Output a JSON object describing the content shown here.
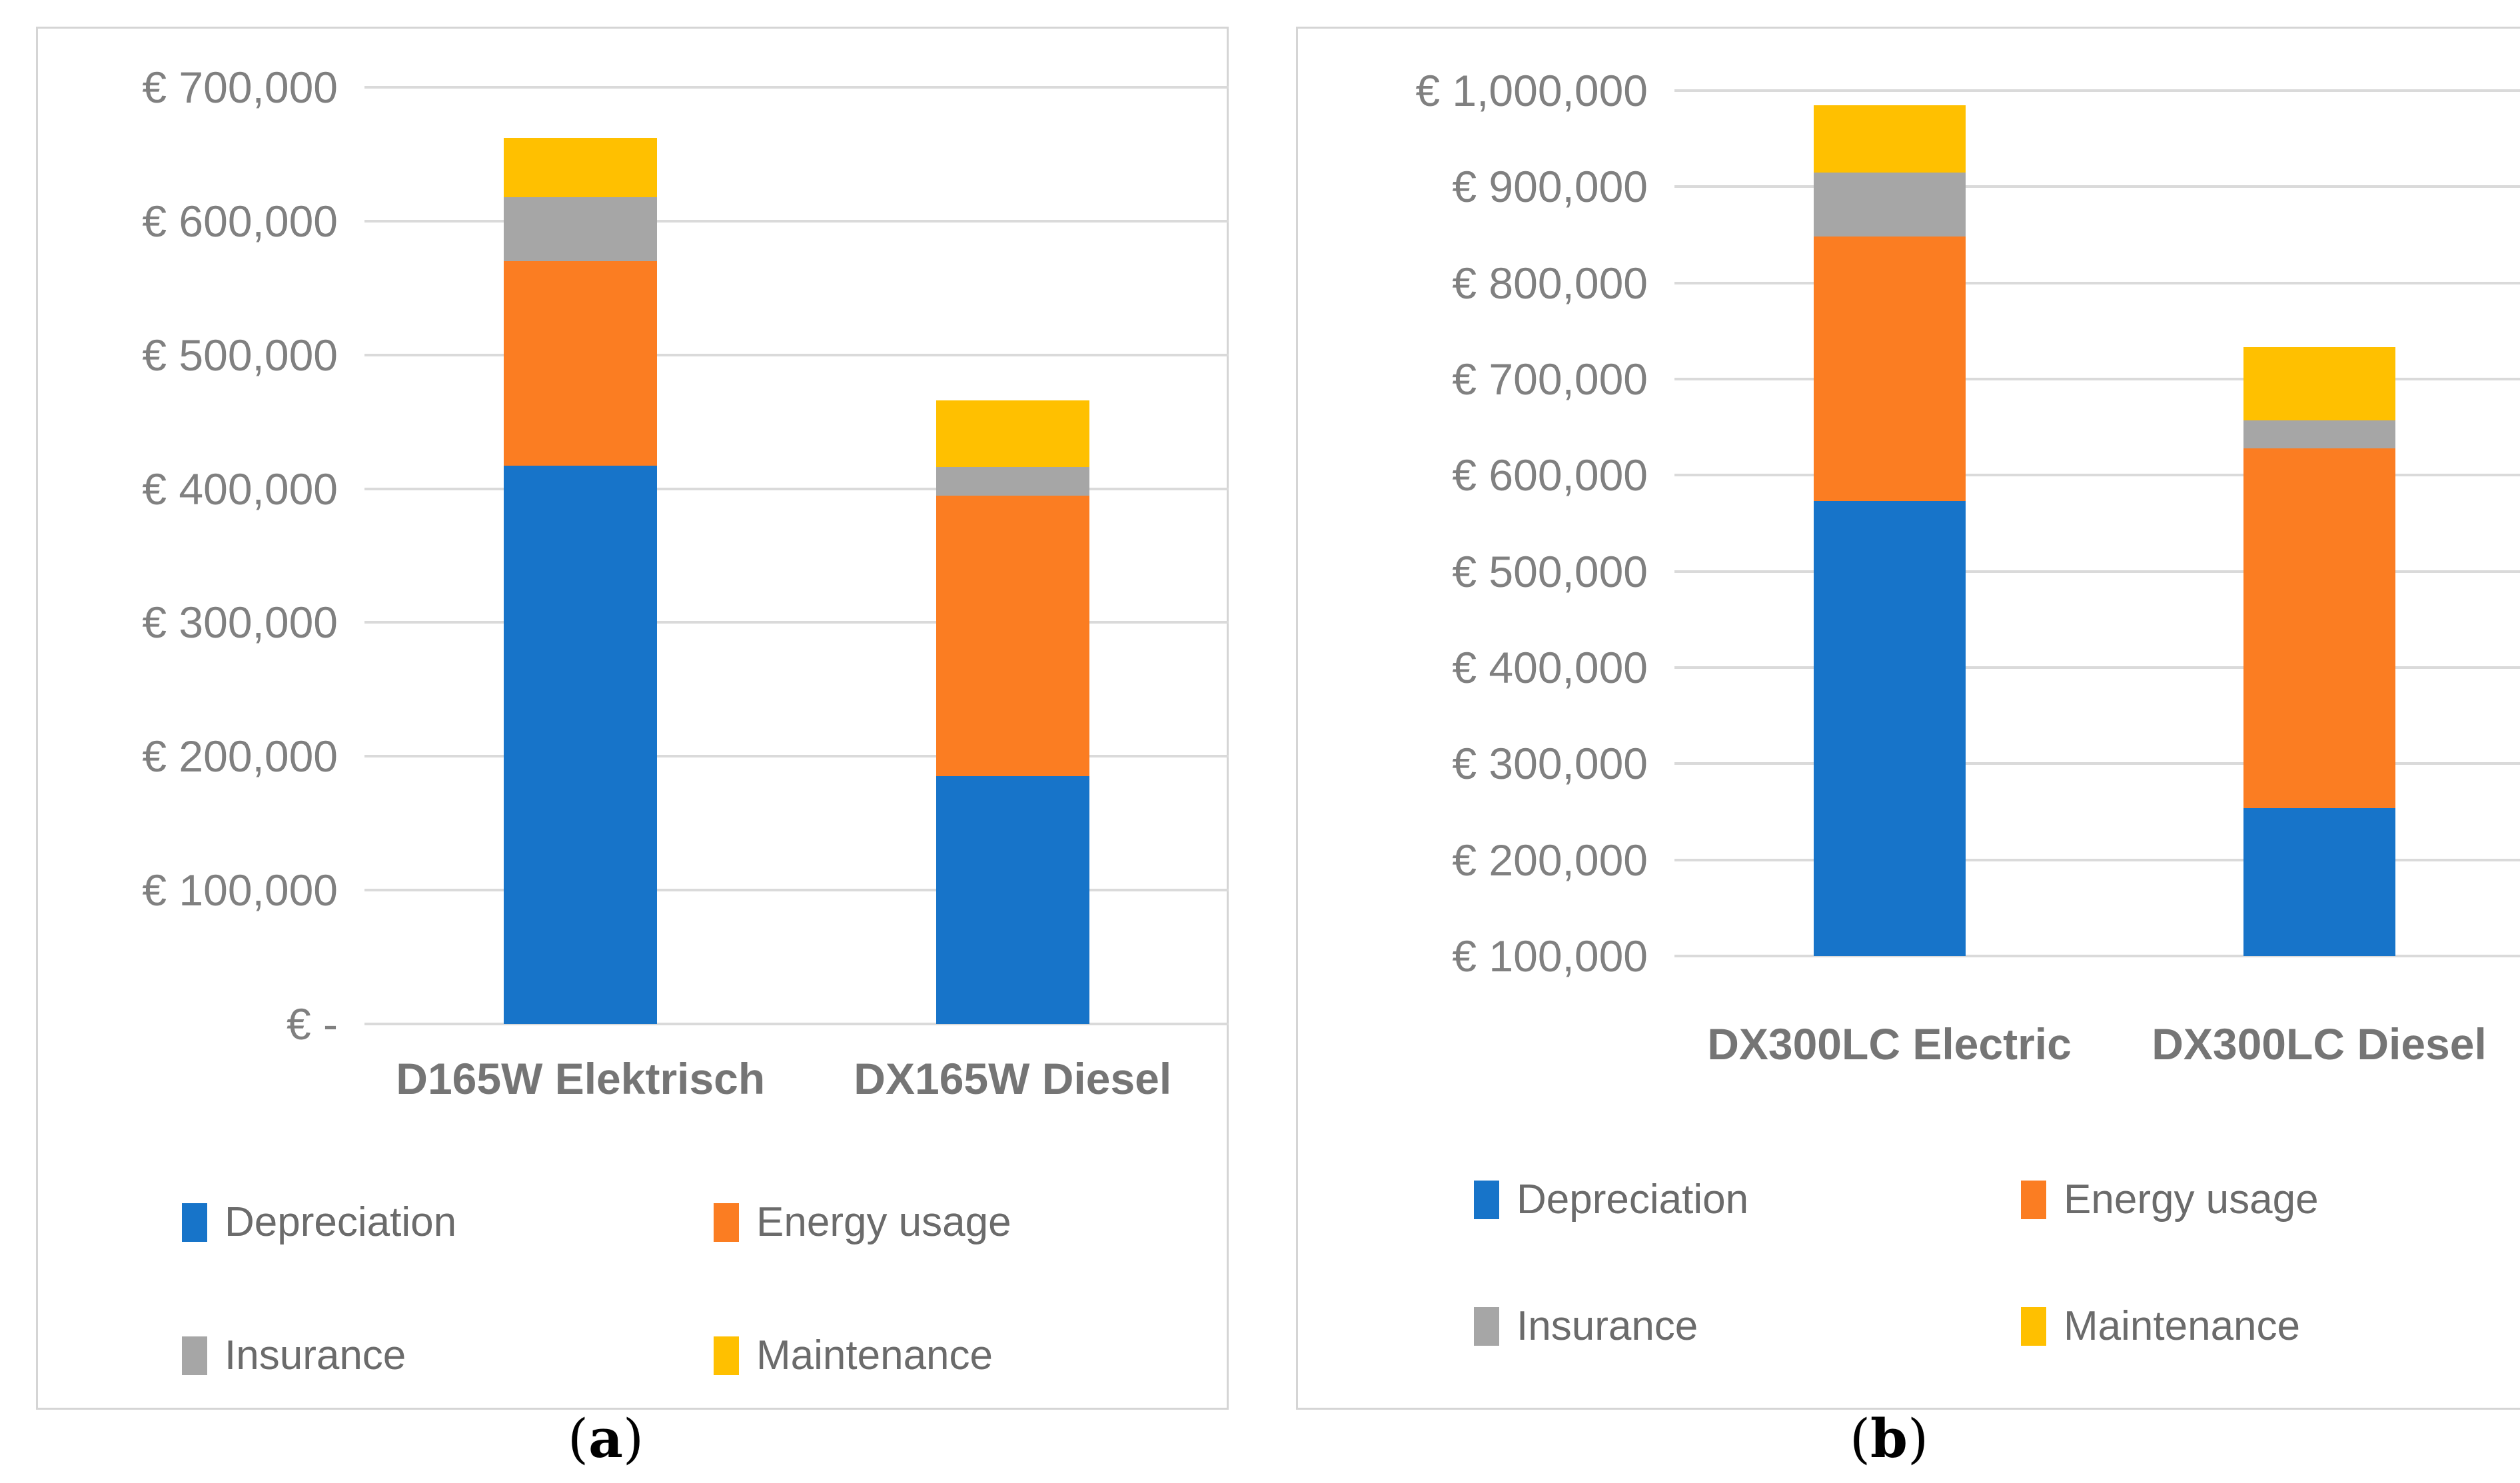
{
  "colors": {
    "depreciation": "#1774C9",
    "energy_usage": "#FB7D22",
    "insurance": "#A6A6A6",
    "maintenance": "#FFC000",
    "gridline": "#DADADA",
    "tick_text": "#808080",
    "category_text": "#757575",
    "legend_text": "#6B6B6B",
    "panel_border": "#D5D5D5",
    "caption_text": "#000000"
  },
  "captions": [
    {
      "open": "(",
      "letter": "a",
      "close": ")"
    },
    {
      "open": "(",
      "letter": "b",
      "close": ")"
    }
  ],
  "chart_data": [
    {
      "type": "bar",
      "stacked": true,
      "title": "",
      "xlabel": "",
      "ylabel": "",
      "grid": true,
      "legend_position": "bottom",
      "categories": [
        "D165W Elektrisch",
        "DX165W Diesel"
      ],
      "series": [
        {
          "name": "Depreciation",
          "color": "depreciation",
          "values": [
            417000,
            185000
          ]
        },
        {
          "name": "Energy usage",
          "color": "energy_usage",
          "values": [
            153000,
            210000
          ]
        },
        {
          "name": "Insurance",
          "color": "insurance",
          "values": [
            48000,
            21000
          ]
        },
        {
          "name": "Maintenance",
          "color": "maintenance",
          "values": [
            44000,
            50000
          ]
        }
      ],
      "totals": [
        662000,
        466000
      ],
      "ylim": [
        0,
        700000
      ],
      "ytick_step": 100000,
      "ytick_labels": [
        "€ 700,000",
        "€ 600,000",
        "€ 500,000",
        "€ 400,000",
        "€ 300,000",
        "€ 200,000",
        "€ 100,000",
        "€ -"
      ],
      "legend_rows": [
        [
          "Depreciation",
          "Energy usage"
        ],
        [
          "Insurance",
          "Maintenance"
        ]
      ]
    },
    {
      "type": "bar",
      "stacked": true,
      "title": "",
      "xlabel": "",
      "ylabel": "",
      "grid": true,
      "legend_position": "bottom",
      "categories": [
        "DX300LC Electric",
        "DX300LC Diesel"
      ],
      "series": [
        {
          "name": "Depreciation",
          "color": "depreciation",
          "values": [
            573000,
            254000
          ]
        },
        {
          "name": "Energy usage",
          "color": "energy_usage",
          "values": [
            275000,
            374000
          ]
        },
        {
          "name": "Insurance",
          "color": "insurance",
          "values": [
            67000,
            29000
          ]
        },
        {
          "name": "Maintenance",
          "color": "maintenance",
          "values": [
            70000,
            76000
          ]
        }
      ],
      "totals": [
        985000,
        733000
      ],
      "ylim": [
        100000,
        1000000
      ],
      "ytick_step": 100000,
      "ytick_labels": [
        "€ 1,000,000",
        "€ 900,000",
        "€ 800,000",
        "€ 700,000",
        "€ 600,000",
        "€ 500,000",
        "€ 400,000",
        "€ 300,000",
        "€ 200,000",
        "€ 100,000"
      ],
      "legend_rows": [
        [
          "Depreciation",
          "Energy usage"
        ],
        [
          "Insurance",
          "Maintenance"
        ]
      ]
    }
  ]
}
